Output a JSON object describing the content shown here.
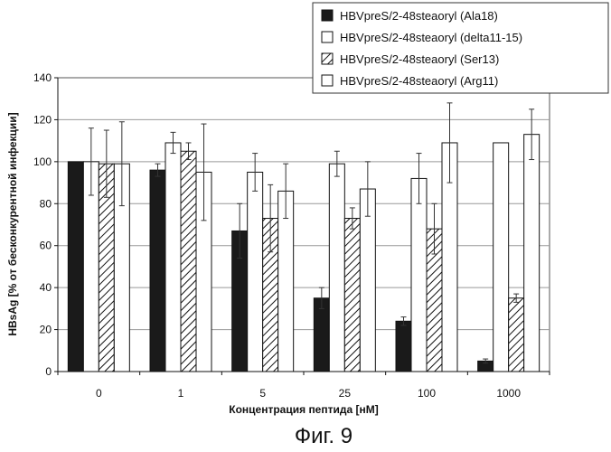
{
  "chart_data": {
    "type": "bar",
    "categories": [
      "0",
      "1",
      "5",
      "25",
      "100",
      "1000"
    ],
    "series": [
      {
        "name": "HBVpreS/2-48steaoryl (Ala18)",
        "values": [
          100,
          96,
          67,
          35,
          24,
          5
        ],
        "errors": [
          0,
          3,
          13,
          5,
          2,
          1
        ],
        "fill": "solid"
      },
      {
        "name": "HBVpreS/2-48steaoryl (delta11-15)",
        "values": [
          100,
          109,
          95,
          99,
          92,
          109
        ],
        "errors": [
          16,
          5,
          9,
          6,
          12,
          0
        ],
        "fill": "white"
      },
      {
        "name": "HBVpreS/2-48steaoryl (Ser13)",
        "values": [
          99,
          105,
          73,
          73,
          68,
          35
        ],
        "errors": [
          16,
          4,
          16,
          5,
          12,
          2
        ],
        "fill": "hatched"
      },
      {
        "name": "HBVpreS/2-48steaoryl (Arg11)",
        "values": [
          99,
          95,
          86,
          87,
          109,
          113
        ],
        "errors": [
          20,
          23,
          13,
          13,
          19,
          12
        ],
        "fill": "white"
      }
    ],
    "xlabel": "Концентрация пептида [нМ]",
    "ylabel": "HBsAg [% от бесконкурентной инфекции]",
    "ylim": [
      0,
      140
    ],
    "yticks": [
      0,
      20,
      40,
      60,
      80,
      100,
      120,
      140
    ],
    "grid": true,
    "legend_position": "top-right",
    "colors": {
      "solid": "#1a1a1a",
      "outline": "#111111",
      "grid": "#999999"
    }
  },
  "caption": "Фиг. 9"
}
